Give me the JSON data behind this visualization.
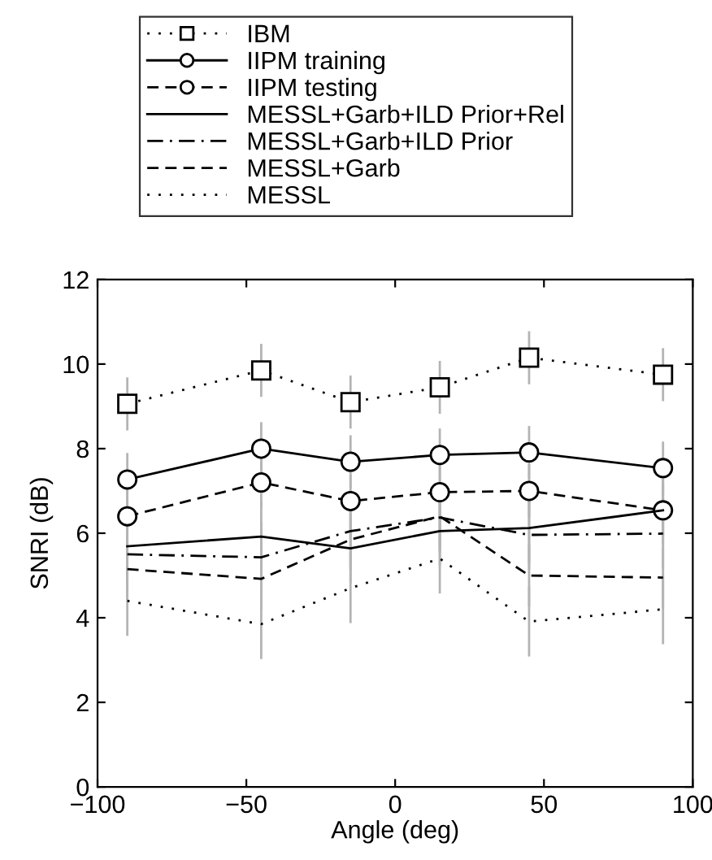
{
  "chart_data": {
    "type": "line",
    "xlabel": "Angle (deg)",
    "ylabel": "SNRI (dB)",
    "x": [
      -90,
      -45,
      -15,
      15,
      45,
      90
    ],
    "xlim": [
      -100,
      100
    ],
    "xticks": [
      {
        "value": -100,
        "label": "−100"
      },
      {
        "value": -50,
        "label": "−50"
      },
      0,
      50,
      100
    ],
    "ylim": [
      0,
      12
    ],
    "yticks": [
      0,
      2,
      4,
      6,
      8,
      10,
      12
    ],
    "grid": false,
    "legend": "top",
    "series": [
      {
        "name": "IBM",
        "color": "#000000",
        "marker": "square",
        "line_style": "dotted",
        "values": [
          9.06,
          9.85,
          9.1,
          9.45,
          10.15,
          9.75
        ],
        "errors": [
          0.6,
          0.6,
          0.6,
          0.6,
          0.6,
          0.6
        ]
      },
      {
        "name": "IIPM training",
        "color": "#000000",
        "marker": "circle",
        "line_style": "solid",
        "values": [
          7.27,
          8.0,
          7.69,
          7.85,
          7.91,
          7.54
        ],
        "errors": [
          0.6,
          0.6,
          0.6,
          0.6,
          0.6,
          0.6
        ]
      },
      {
        "name": "IIPM testing",
        "color": "#000000",
        "marker": "circle",
        "line_style": "dashed",
        "values": [
          6.4,
          7.2,
          6.76,
          6.97,
          7.0,
          6.54
        ],
        "errors": [
          0.6,
          0.6,
          0.6,
          0.6,
          0.6,
          0.6
        ]
      },
      {
        "name": "MESSL+Garb+ILD Prior+Rel",
        "color": "#000000",
        "marker": "none",
        "line_style": "solid",
        "values": [
          5.69,
          5.92,
          5.64,
          6.05,
          6.12,
          6.54
        ],
        "errors": [
          0.8,
          0.8,
          0.8,
          0.8,
          0.8,
          0.8
        ]
      },
      {
        "name": "MESSL+Garb+ILD Prior",
        "color": "#000000",
        "marker": "none",
        "line_style": "dashdot",
        "values": [
          5.5,
          5.43,
          6.05,
          6.37,
          5.96,
          5.99
        ],
        "errors": [
          0.8,
          0.8,
          0.8,
          0.8,
          0.8,
          0.8
        ]
      },
      {
        "name": "MESSL+Garb",
        "color": "#000000",
        "marker": "none",
        "line_style": "dashed",
        "values": [
          5.15,
          4.92,
          5.85,
          6.4,
          5.0,
          4.95
        ],
        "errors": [
          0.7,
          0.7,
          0.7,
          0.7,
          0.7,
          0.7
        ]
      },
      {
        "name": "MESSL",
        "color": "#000000",
        "marker": "none",
        "line_style": "dotted",
        "values": [
          4.4,
          3.85,
          4.7,
          5.4,
          3.91,
          4.2
        ],
        "errors": [
          0.8,
          0.8,
          0.8,
          0.8,
          0.8,
          0.8
        ]
      }
    ]
  }
}
